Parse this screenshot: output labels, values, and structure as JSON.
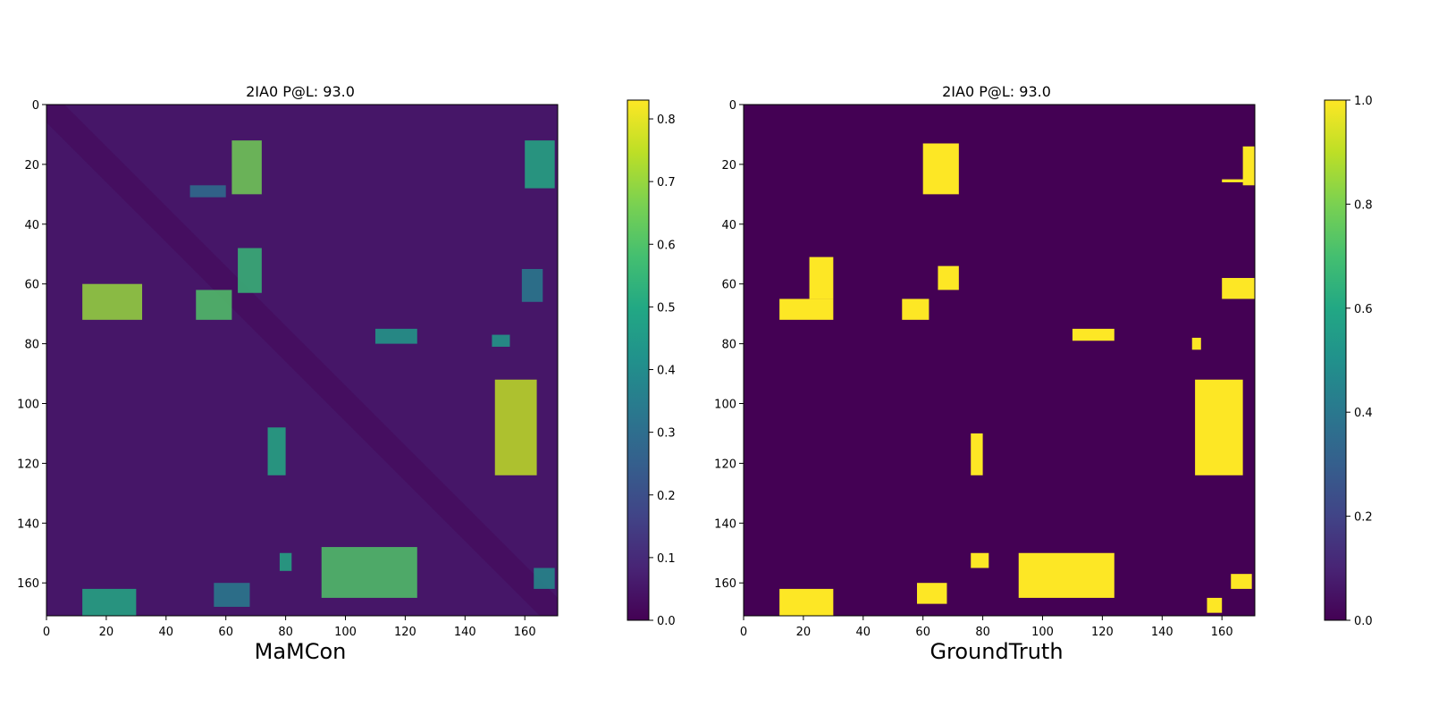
{
  "chart_data": [
    {
      "type": "heatmap",
      "title": "2IA0 P@L: 93.0",
      "xlabel": "MaMCon",
      "ylabel": "",
      "size": 171,
      "xlim": [
        0,
        171
      ],
      "ylim": [
        171,
        0
      ],
      "x_ticks": [
        0,
        20,
        40,
        60,
        80,
        100,
        120,
        140,
        160
      ],
      "y_ticks": [
        0,
        20,
        40,
        60,
        80,
        100,
        120,
        140,
        160
      ],
      "colormap": "viridis",
      "colorbar": {
        "min": 0.0,
        "max": 0.83,
        "ticks": [
          0.0,
          0.1,
          0.2,
          0.3,
          0.4,
          0.5,
          0.6,
          0.7,
          0.8
        ]
      },
      "background_value": 0.05,
      "diagonal_band_value": 0.03,
      "contact_regions": [
        {
          "i": [
            12,
            30
          ],
          "j": [
            62,
            72
          ],
          "value": 0.65
        },
        {
          "i": [
            27,
            31
          ],
          "j": [
            48,
            60
          ],
          "value": 0.3
        },
        {
          "i": [
            48,
            63
          ],
          "j": [
            64,
            72
          ],
          "value": 0.55
        },
        {
          "i": [
            60,
            72
          ],
          "j": [
            12,
            32
          ],
          "value": 0.7
        },
        {
          "i": [
            62,
            72
          ],
          "j": [
            50,
            62
          ],
          "value": 0.6
        },
        {
          "i": [
            75,
            80
          ],
          "j": [
            110,
            124
          ],
          "value": 0.45
        },
        {
          "i": [
            77,
            81
          ],
          "j": [
            149,
            155
          ],
          "value": 0.45
        },
        {
          "i": [
            92,
            124
          ],
          "j": [
            150,
            164
          ],
          "value": 0.75
        },
        {
          "i": [
            108,
            124
          ],
          "j": [
            74,
            80
          ],
          "value": 0.5
        },
        {
          "i": [
            12,
            28
          ],
          "j": [
            160,
            170
          ],
          "value": 0.5
        },
        {
          "i": [
            55,
            66
          ],
          "j": [
            159,
            166
          ],
          "value": 0.35
        },
        {
          "i": [
            148,
            165
          ],
          "j": [
            92,
            124
          ],
          "value": 0.6
        },
        {
          "i": [
            150,
            156
          ],
          "j": [
            78,
            82
          ],
          "value": 0.5
        },
        {
          "i": [
            160,
            168
          ],
          "j": [
            56,
            68
          ],
          "value": 0.35
        },
        {
          "i": [
            162,
            171
          ],
          "j": [
            12,
            30
          ],
          "value": 0.5
        },
        {
          "i": [
            155,
            162
          ],
          "j": [
            163,
            170
          ],
          "value": 0.4
        }
      ]
    },
    {
      "type": "heatmap",
      "title": "2IA0 P@L: 93.0",
      "xlabel": "GroundTruth",
      "ylabel": "",
      "size": 171,
      "xlim": [
        0,
        171
      ],
      "ylim": [
        171,
        0
      ],
      "x_ticks": [
        0,
        20,
        40,
        60,
        80,
        100,
        120,
        140,
        160
      ],
      "y_ticks": [
        0,
        20,
        40,
        60,
        80,
        100,
        120,
        140,
        160
      ],
      "colormap": "viridis",
      "colorbar": {
        "min": 0.0,
        "max": 1.0,
        "ticks": [
          0.0,
          0.2,
          0.4,
          0.6,
          0.8,
          1.0
        ]
      },
      "background_value": 0.0,
      "contact_regions": [
        {
          "i": [
            13,
            30
          ],
          "j": [
            60,
            72
          ],
          "value": 1.0
        },
        {
          "i": [
            14,
            27
          ],
          "j": [
            167,
            171
          ],
          "value": 1.0
        },
        {
          "i": [
            25,
            26
          ],
          "j": [
            160,
            171
          ],
          "value": 1.0
        },
        {
          "i": [
            51,
            65
          ],
          "j": [
            22,
            30
          ],
          "value": 1.0
        },
        {
          "i": [
            54,
            62
          ],
          "j": [
            65,
            72
          ],
          "value": 1.0
        },
        {
          "i": [
            58,
            65
          ],
          "j": [
            160,
            171
          ],
          "value": 1.0
        },
        {
          "i": [
            65,
            72
          ],
          "j": [
            12,
            30
          ],
          "value": 1.0
        },
        {
          "i": [
            65,
            72
          ],
          "j": [
            53,
            62
          ],
          "value": 1.0
        },
        {
          "i": [
            75,
            79
          ],
          "j": [
            110,
            124
          ],
          "value": 1.0
        },
        {
          "i": [
            78,
            82
          ],
          "j": [
            150,
            153
          ],
          "value": 1.0
        },
        {
          "i": [
            92,
            124
          ],
          "j": [
            151,
            167
          ],
          "value": 1.0
        },
        {
          "i": [
            110,
            124
          ],
          "j": [
            76,
            80
          ],
          "value": 1.0
        },
        {
          "i": [
            150,
            155
          ],
          "j": [
            76,
            82
          ],
          "value": 1.0
        },
        {
          "i": [
            150,
            165
          ],
          "j": [
            92,
            124
          ],
          "value": 1.0
        },
        {
          "i": [
            157,
            162
          ],
          "j": [
            163,
            170
          ],
          "value": 1.0
        },
        {
          "i": [
            160,
            167
          ],
          "j": [
            58,
            68
          ],
          "value": 1.0
        },
        {
          "i": [
            162,
            171
          ],
          "j": [
            12,
            30
          ],
          "value": 1.0
        },
        {
          "i": [
            165,
            170
          ],
          "j": [
            155,
            160
          ],
          "value": 1.0
        }
      ]
    }
  ]
}
